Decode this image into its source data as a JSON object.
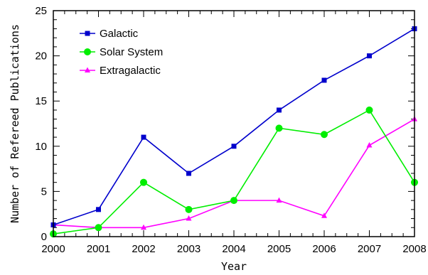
{
  "chart_data": {
    "type": "line",
    "xlabel": "Year",
    "ylabel": "Number of Refereed Publications",
    "x": [
      2000,
      2001,
      2002,
      2003,
      2004,
      2005,
      2006,
      2007,
      2008
    ],
    "xlim": [
      2000,
      2008
    ],
    "ylim": [
      0,
      25
    ],
    "xticks": [
      "2000",
      "2001",
      "2002",
      "2003",
      "2004",
      "2005",
      "2006",
      "2007",
      "2008"
    ],
    "yticks": [
      "0",
      "5",
      "10",
      "15",
      "20",
      "25"
    ],
    "grid": false,
    "legend_position": "top-left",
    "series": [
      {
        "name": "Galactic",
        "color": "#0000cc",
        "marker": "square",
        "values": [
          1.3,
          3,
          11,
          7,
          10,
          14,
          17.3,
          20,
          23
        ]
      },
      {
        "name": "Solar System",
        "color": "#00ee00",
        "marker": "circle",
        "values": [
          0.3,
          1,
          6,
          3,
          4,
          12,
          11.3,
          14,
          6
        ]
      },
      {
        "name": "Extragalactic",
        "color": "#ff00ff",
        "marker": "triangle",
        "values": [
          1.3,
          1,
          1,
          2,
          4,
          4,
          2.3,
          10.1,
          13
        ]
      }
    ]
  }
}
